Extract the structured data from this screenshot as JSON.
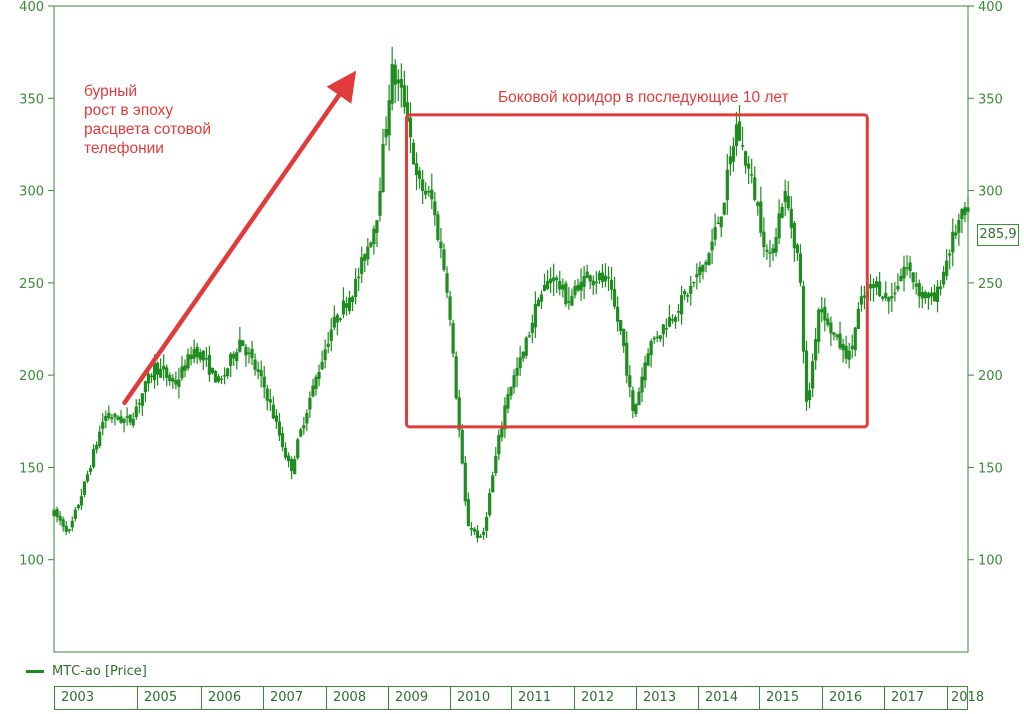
{
  "chart_data": {
    "type": "candlestick",
    "series_name": "МТС-ао [Price]",
    "ylim": [
      50,
      400
    ],
    "y_ticks": [
      100,
      150,
      200,
      250,
      300,
      350,
      400
    ],
    "x_ticks": [
      "2003",
      "2005",
      "2006",
      "2007",
      "2008",
      "2009",
      "2010",
      "2011",
      "2012",
      "2013",
      "2014",
      "2015",
      "2016",
      "2017",
      "2018"
    ],
    "last_value_label": "285,9",
    "annotations": [
      {
        "text_lines": [
          "бурный",
          "рост в эпоху",
          "расцвета сотовой",
          "телефонии"
        ]
      },
      {
        "text": "Боковой коридор в последующие 10 лет"
      }
    ],
    "trend_arrow": {
      "from": {
        "t": 2003.4,
        "v": 185
      },
      "to": {
        "t": 2008.0,
        "v": 365
      }
    },
    "corridor_box": {
      "t_start": 2009.0,
      "t_end": 2018.15,
      "v_low": 172,
      "v_high": 341
    },
    "keypoints": [
      {
        "t": 2002.0,
        "v": 125
      },
      {
        "t": 2002.3,
        "v": 115
      },
      {
        "t": 2002.6,
        "v": 140
      },
      {
        "t": 2003.0,
        "v": 178
      },
      {
        "t": 2003.5,
        "v": 175
      },
      {
        "t": 2004.0,
        "v": 205
      },
      {
        "t": 2004.4,
        "v": 195
      },
      {
        "t": 2004.8,
        "v": 215
      },
      {
        "t": 2005.3,
        "v": 195
      },
      {
        "t": 2005.7,
        "v": 220
      },
      {
        "t": 2006.2,
        "v": 192
      },
      {
        "t": 2006.7,
        "v": 148
      },
      {
        "t": 2007.0,
        "v": 180
      },
      {
        "t": 2007.5,
        "v": 225
      },
      {
        "t": 2008.0,
        "v": 250
      },
      {
        "t": 2008.4,
        "v": 285
      },
      {
        "t": 2008.7,
        "v": 365
      },
      {
        "t": 2009.0,
        "v": 345
      },
      {
        "t": 2009.2,
        "v": 305
      },
      {
        "t": 2009.5,
        "v": 295
      },
      {
        "t": 2009.8,
        "v": 250
      },
      {
        "t": 2010.2,
        "v": 120
      },
      {
        "t": 2010.5,
        "v": 110
      },
      {
        "t": 2010.8,
        "v": 160
      },
      {
        "t": 2011.0,
        "v": 190
      },
      {
        "t": 2011.3,
        "v": 210
      },
      {
        "t": 2011.6,
        "v": 240
      },
      {
        "t": 2011.9,
        "v": 255
      },
      {
        "t": 2012.2,
        "v": 240
      },
      {
        "t": 2012.6,
        "v": 255
      },
      {
        "t": 2013.0,
        "v": 250
      },
      {
        "t": 2013.3,
        "v": 218
      },
      {
        "t": 2013.5,
        "v": 178
      },
      {
        "t": 2013.8,
        "v": 215
      },
      {
        "t": 2014.2,
        "v": 230
      },
      {
        "t": 2014.6,
        "v": 245
      },
      {
        "t": 2015.0,
        "v": 265
      },
      {
        "t": 2015.3,
        "v": 295
      },
      {
        "t": 2015.55,
        "v": 335
      },
      {
        "t": 2015.9,
        "v": 300
      },
      {
        "t": 2016.2,
        "v": 260
      },
      {
        "t": 2016.5,
        "v": 300
      },
      {
        "t": 2016.8,
        "v": 260
      },
      {
        "t": 2016.95,
        "v": 180
      },
      {
        "t": 2017.2,
        "v": 240
      },
      {
        "t": 2017.5,
        "v": 220
      },
      {
        "t": 2017.8,
        "v": 210
      },
      {
        "t": 2018.0,
        "v": 238
      },
      {
        "t": 2018.3,
        "v": 250
      },
      {
        "t": 2018.6,
        "v": 240
      },
      {
        "t": 2018.9,
        "v": 260
      },
      {
        "t": 2019.2,
        "v": 245
      },
      {
        "t": 2019.5,
        "v": 240
      },
      {
        "t": 2019.8,
        "v": 270
      },
      {
        "t": 2020.0,
        "v": 285
      },
      {
        "t": 2020.15,
        "v": 286
      }
    ]
  },
  "colors": {
    "candles": "#1e8c1e",
    "axis": "#3a8a3a",
    "annotation": "#e23b3b"
  }
}
